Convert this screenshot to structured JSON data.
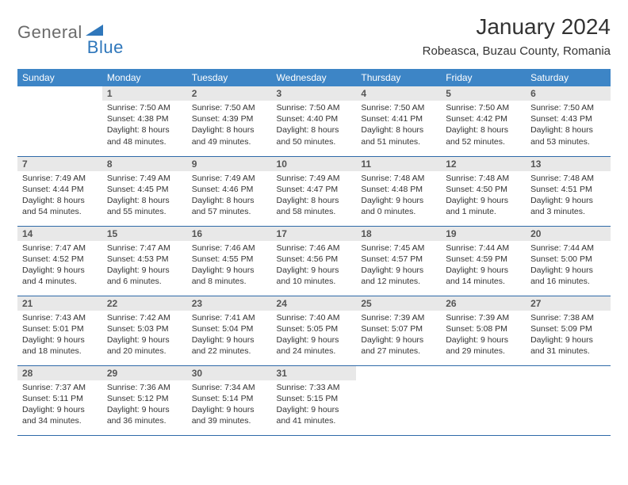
{
  "logo": {
    "text_gen": "General",
    "text_blue": "Blue"
  },
  "title": "January 2024",
  "location": "Robeasca, Buzau County, Romania",
  "weekdays": [
    "Sunday",
    "Monday",
    "Tuesday",
    "Wednesday",
    "Thursday",
    "Friday",
    "Saturday"
  ],
  "colors": {
    "header_bg": "#3d85c6",
    "header_text": "#ffffff",
    "daynum_bg": "#e8e8e8",
    "row_border": "#2f6aa8",
    "body_text": "#333333",
    "logo_gray": "#6b6b6b",
    "logo_blue": "#2f77bb"
  },
  "layout": {
    "start_weekday": 1,
    "rows": 5,
    "cols": 7
  },
  "days": [
    {
      "n": 1,
      "sunrise": "7:50 AM",
      "sunset": "4:38 PM",
      "daylight": "8 hours and 48 minutes."
    },
    {
      "n": 2,
      "sunrise": "7:50 AM",
      "sunset": "4:39 PM",
      "daylight": "8 hours and 49 minutes."
    },
    {
      "n": 3,
      "sunrise": "7:50 AM",
      "sunset": "4:40 PM",
      "daylight": "8 hours and 50 minutes."
    },
    {
      "n": 4,
      "sunrise": "7:50 AM",
      "sunset": "4:41 PM",
      "daylight": "8 hours and 51 minutes."
    },
    {
      "n": 5,
      "sunrise": "7:50 AM",
      "sunset": "4:42 PM",
      "daylight": "8 hours and 52 minutes."
    },
    {
      "n": 6,
      "sunrise": "7:50 AM",
      "sunset": "4:43 PM",
      "daylight": "8 hours and 53 minutes."
    },
    {
      "n": 7,
      "sunrise": "7:49 AM",
      "sunset": "4:44 PM",
      "daylight": "8 hours and 54 minutes."
    },
    {
      "n": 8,
      "sunrise": "7:49 AM",
      "sunset": "4:45 PM",
      "daylight": "8 hours and 55 minutes."
    },
    {
      "n": 9,
      "sunrise": "7:49 AM",
      "sunset": "4:46 PM",
      "daylight": "8 hours and 57 minutes."
    },
    {
      "n": 10,
      "sunrise": "7:49 AM",
      "sunset": "4:47 PM",
      "daylight": "8 hours and 58 minutes."
    },
    {
      "n": 11,
      "sunrise": "7:48 AM",
      "sunset": "4:48 PM",
      "daylight": "9 hours and 0 minutes."
    },
    {
      "n": 12,
      "sunrise": "7:48 AM",
      "sunset": "4:50 PM",
      "daylight": "9 hours and 1 minute."
    },
    {
      "n": 13,
      "sunrise": "7:48 AM",
      "sunset": "4:51 PM",
      "daylight": "9 hours and 3 minutes."
    },
    {
      "n": 14,
      "sunrise": "7:47 AM",
      "sunset": "4:52 PM",
      "daylight": "9 hours and 4 minutes."
    },
    {
      "n": 15,
      "sunrise": "7:47 AM",
      "sunset": "4:53 PM",
      "daylight": "9 hours and 6 minutes."
    },
    {
      "n": 16,
      "sunrise": "7:46 AM",
      "sunset": "4:55 PM",
      "daylight": "9 hours and 8 minutes."
    },
    {
      "n": 17,
      "sunrise": "7:46 AM",
      "sunset": "4:56 PM",
      "daylight": "9 hours and 10 minutes."
    },
    {
      "n": 18,
      "sunrise": "7:45 AM",
      "sunset": "4:57 PM",
      "daylight": "9 hours and 12 minutes."
    },
    {
      "n": 19,
      "sunrise": "7:44 AM",
      "sunset": "4:59 PM",
      "daylight": "9 hours and 14 minutes."
    },
    {
      "n": 20,
      "sunrise": "7:44 AM",
      "sunset": "5:00 PM",
      "daylight": "9 hours and 16 minutes."
    },
    {
      "n": 21,
      "sunrise": "7:43 AM",
      "sunset": "5:01 PM",
      "daylight": "9 hours and 18 minutes."
    },
    {
      "n": 22,
      "sunrise": "7:42 AM",
      "sunset": "5:03 PM",
      "daylight": "9 hours and 20 minutes."
    },
    {
      "n": 23,
      "sunrise": "7:41 AM",
      "sunset": "5:04 PM",
      "daylight": "9 hours and 22 minutes."
    },
    {
      "n": 24,
      "sunrise": "7:40 AM",
      "sunset": "5:05 PM",
      "daylight": "9 hours and 24 minutes."
    },
    {
      "n": 25,
      "sunrise": "7:39 AM",
      "sunset": "5:07 PM",
      "daylight": "9 hours and 27 minutes."
    },
    {
      "n": 26,
      "sunrise": "7:39 AM",
      "sunset": "5:08 PM",
      "daylight": "9 hours and 29 minutes."
    },
    {
      "n": 27,
      "sunrise": "7:38 AM",
      "sunset": "5:09 PM",
      "daylight": "9 hours and 31 minutes."
    },
    {
      "n": 28,
      "sunrise": "7:37 AM",
      "sunset": "5:11 PM",
      "daylight": "9 hours and 34 minutes."
    },
    {
      "n": 29,
      "sunrise": "7:36 AM",
      "sunset": "5:12 PM",
      "daylight": "9 hours and 36 minutes."
    },
    {
      "n": 30,
      "sunrise": "7:34 AM",
      "sunset": "5:14 PM",
      "daylight": "9 hours and 39 minutes."
    },
    {
      "n": 31,
      "sunrise": "7:33 AM",
      "sunset": "5:15 PM",
      "daylight": "9 hours and 41 minutes."
    }
  ],
  "labels": {
    "sunrise": "Sunrise:",
    "sunset": "Sunset:",
    "daylight": "Daylight:"
  }
}
